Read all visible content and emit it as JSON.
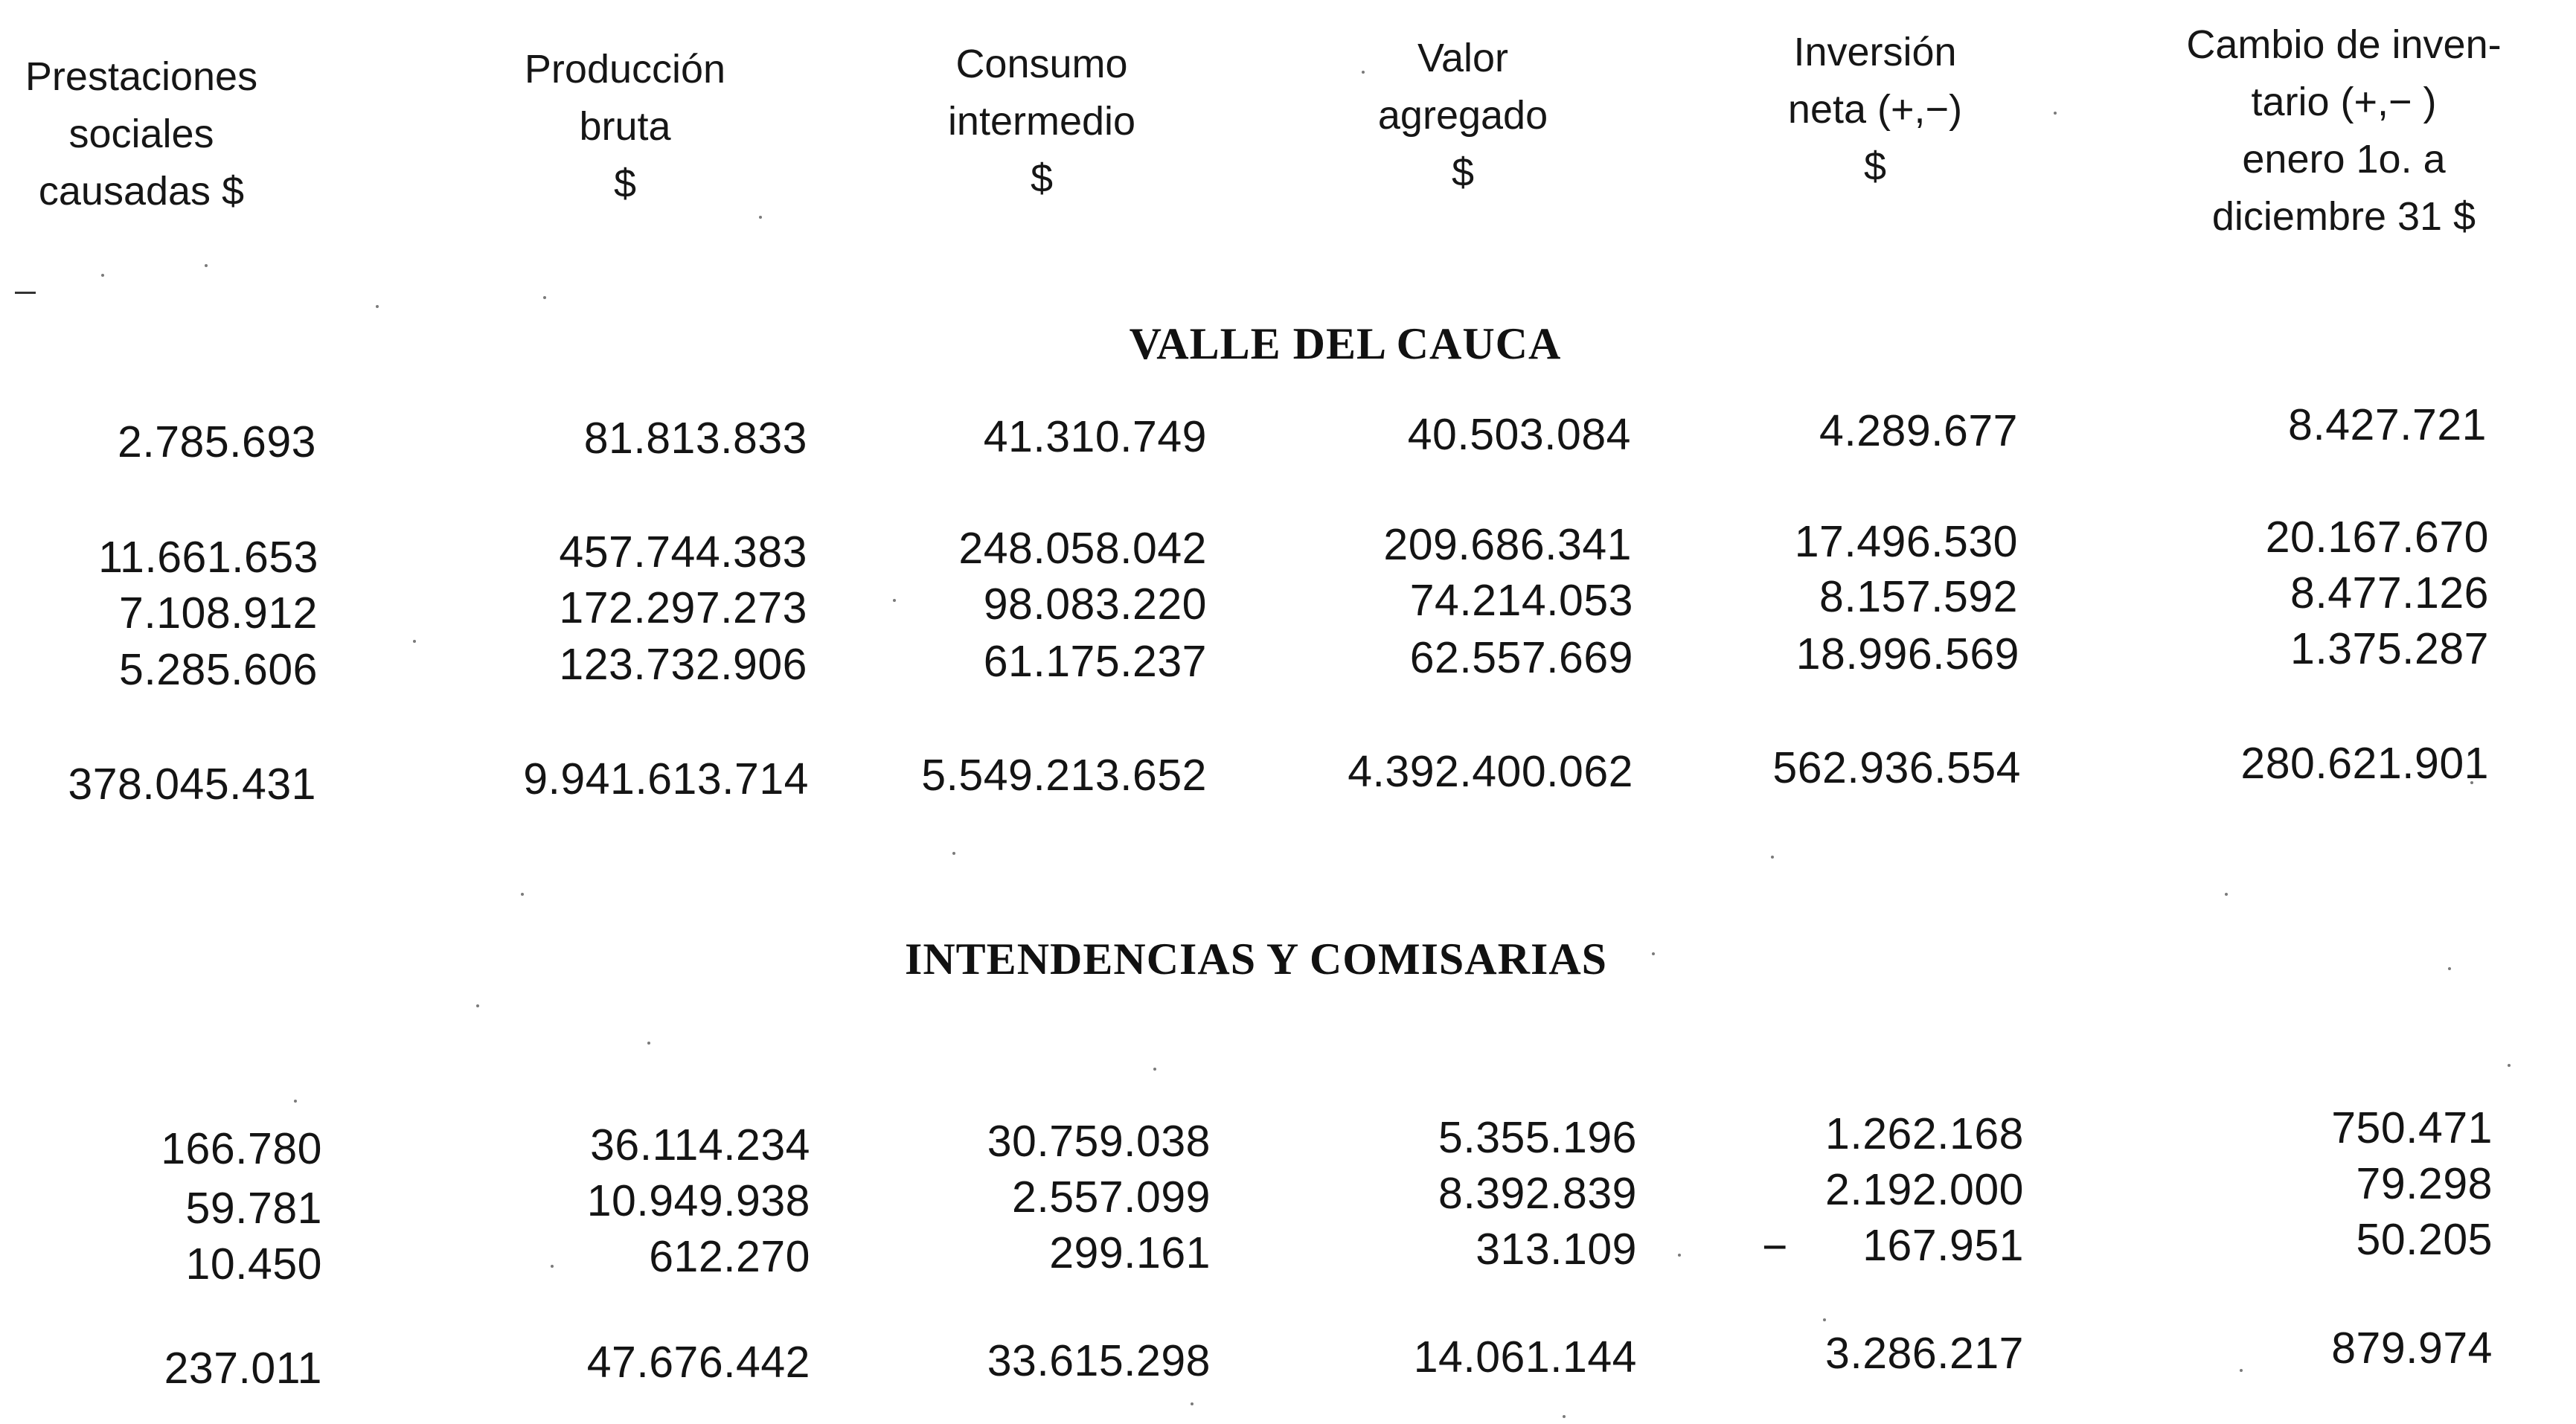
{
  "headers": {
    "prestaciones": [
      "Prestaciones",
      "sociales",
      "causadas $"
    ],
    "produccion": [
      "Producción",
      "bruta",
      "$"
    ],
    "consumo": [
      "Consumo",
      "intermedio",
      "$"
    ],
    "valor": [
      "Valor",
      "agregado",
      "$"
    ],
    "inversion": [
      "Inversión",
      "neta (+,−)",
      "$"
    ],
    "cambio": [
      "Cambio de inven-",
      "tario (+,− )",
      "enero 1o. a",
      "diciembre 31 $"
    ]
  },
  "sections": {
    "valle": {
      "title": "VALLE DEL CAUCA",
      "rows": [
        [
          "2.785.693",
          "81.813.833",
          "41.310.749",
          "40.503.084",
          "4.289.677",
          "8.427.721"
        ],
        [
          "11.661.653",
          "457.744.383",
          "248.058.042",
          "209.686.341",
          "17.496.530",
          "20.167.670"
        ],
        [
          "7.108.912",
          "172.297.273",
          "98.083.220",
          "74.214.053",
          "8.157.592",
          "8.477.126"
        ],
        [
          "5.285.606",
          "123.732.906",
          "61.175.237",
          "62.557.669",
          "18.996.569",
          "1.375.287"
        ],
        [
          "378.045.431",
          "9.941.613.714",
          "5.549.213.652",
          "4.392.400.062",
          "562.936.554",
          "280.621.901"
        ]
      ]
    },
    "intendencias": {
      "title": "INTENDENCIAS Y COMISARIAS",
      "rows": [
        [
          "166.780",
          "36.114.234",
          "30.759.038",
          "5.355.196",
          "1.262.168",
          "750.471"
        ],
        [
          "59.781",
          "10.949.938",
          "2.557.099",
          "8.392.839",
          "2.192.000",
          "79.298"
        ],
        [
          "10.450",
          "612.270",
          "299.161",
          "313.109",
          "167.951",
          "50.205"
        ],
        [
          "237.011",
          "47.676.442",
          "33.615.298",
          "14.061.144",
          "3.286.217",
          "879.974"
        ]
      ],
      "negative_sign": "−"
    }
  }
}
